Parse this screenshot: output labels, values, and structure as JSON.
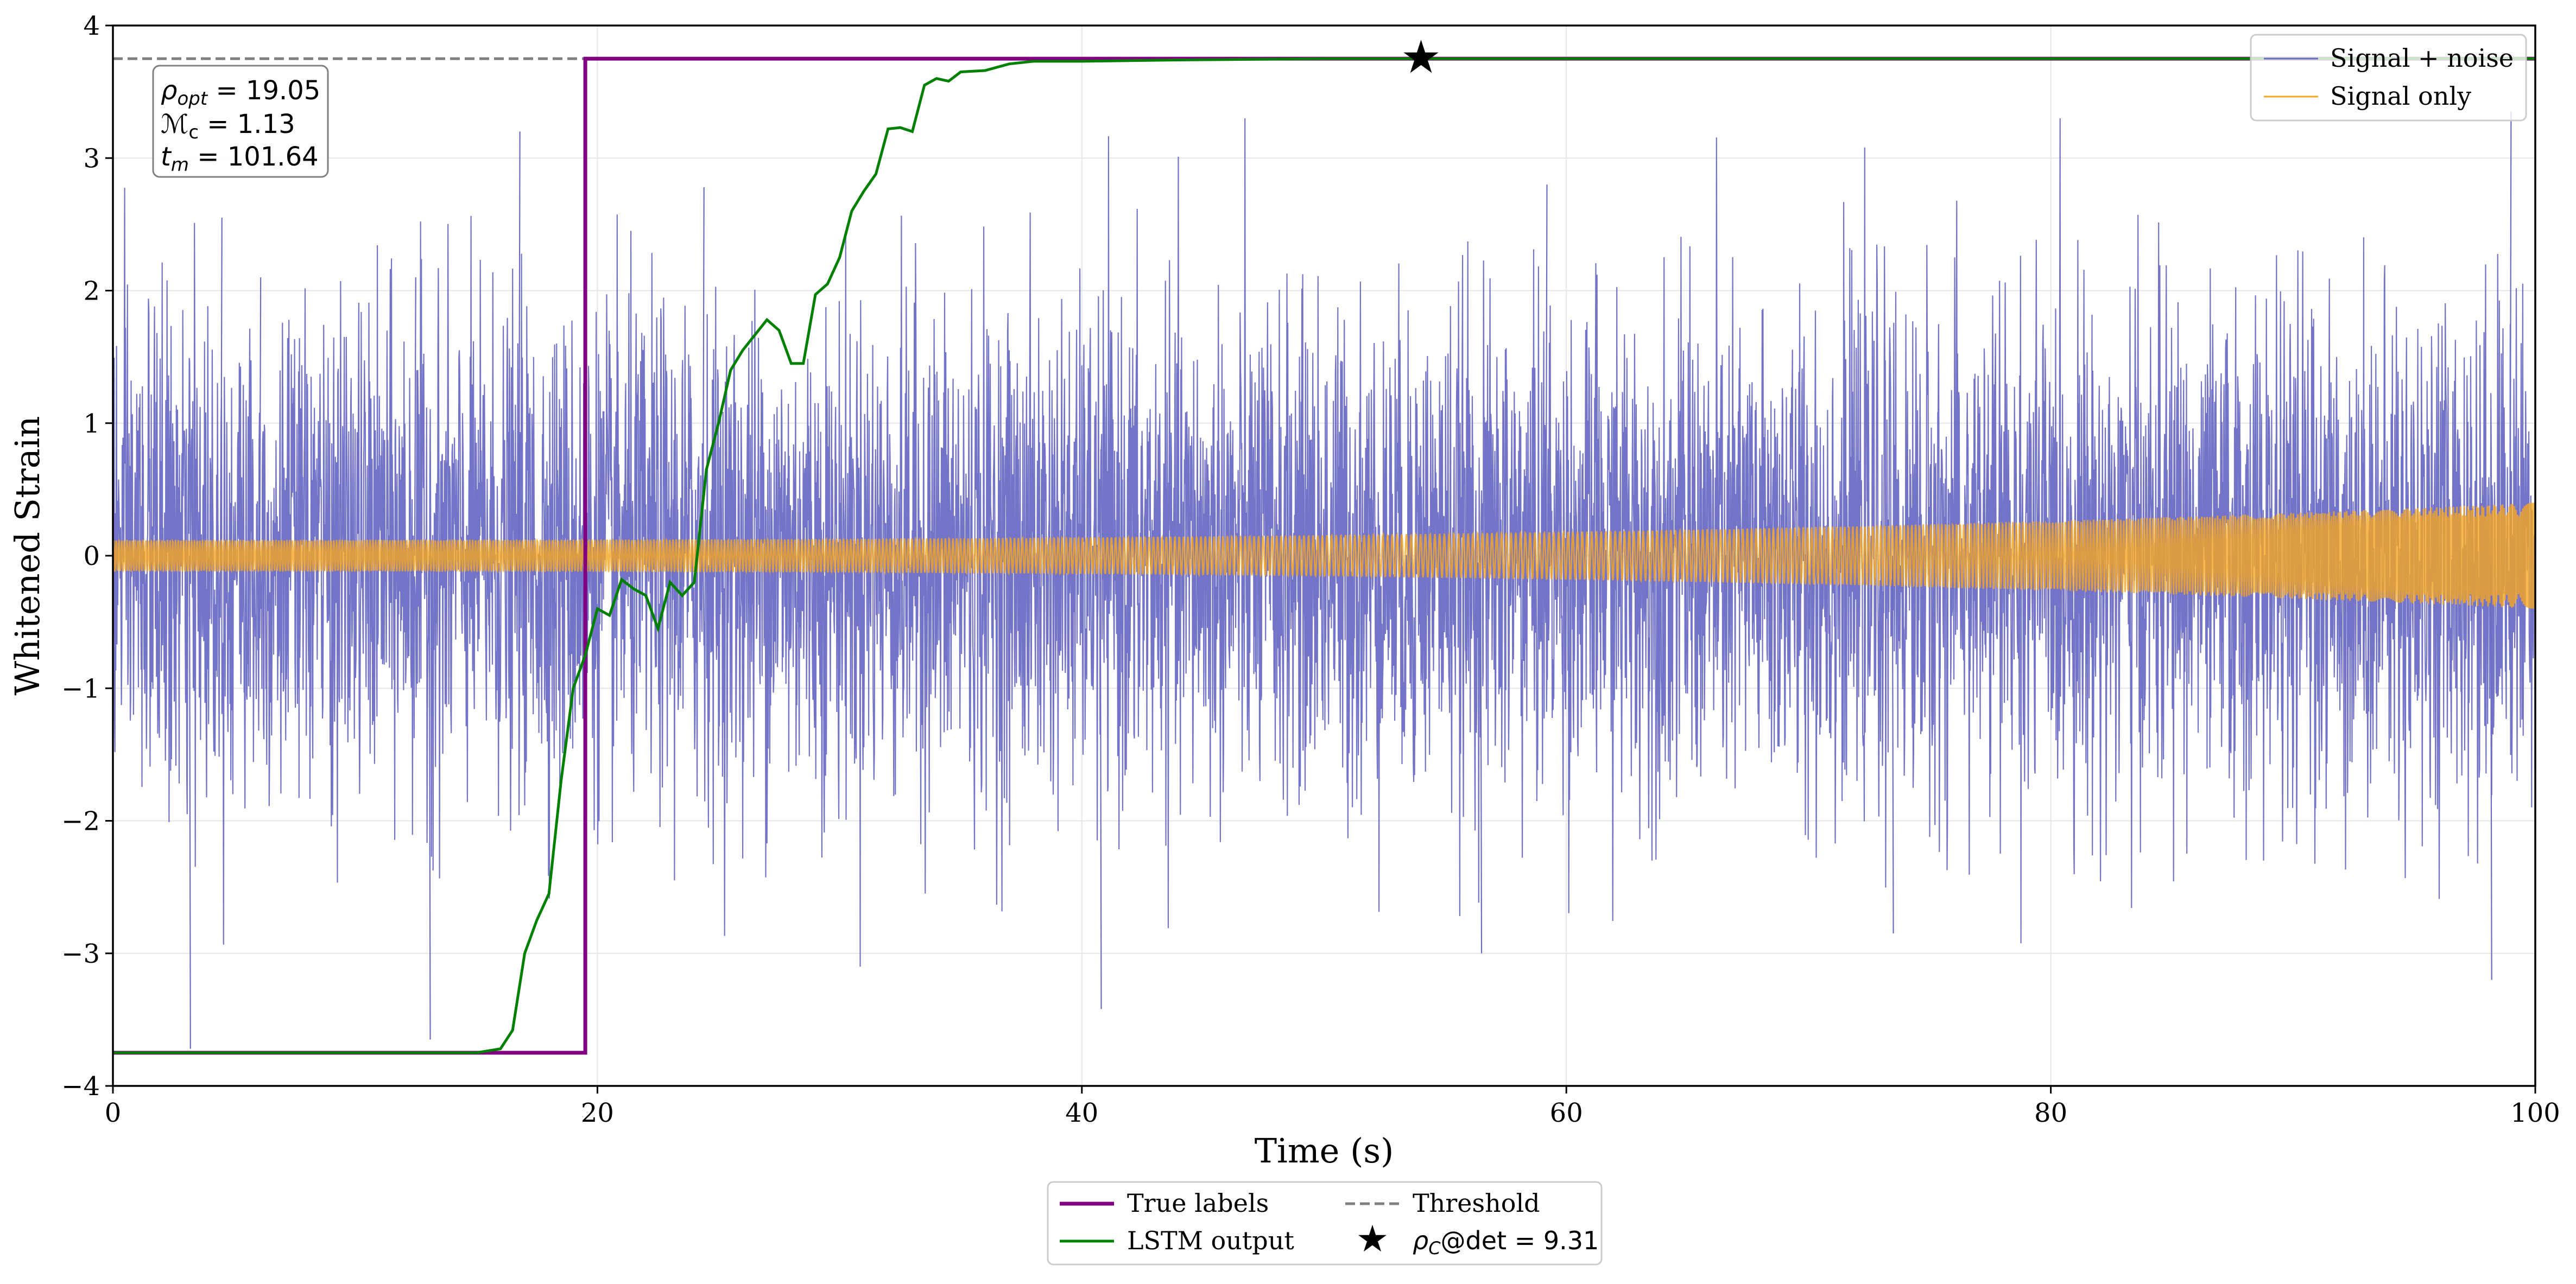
{
  "chart_data": {
    "type": "line",
    "xlabel": "Time (s)",
    "ylabel": "Whitened Strain",
    "xlim": [
      0,
      100
    ],
    "ylim": [
      -4,
      4
    ],
    "x_ticks": [
      0,
      20,
      40,
      60,
      80,
      100
    ],
    "x_tick_labels": [
      "0",
      "20",
      "40",
      "60",
      "80",
      "100"
    ],
    "y_ticks": [
      -4,
      -3,
      -2,
      -1,
      0,
      1,
      2,
      3,
      4
    ],
    "y_tick_labels": [
      "−4",
      "−3",
      "−2",
      "−1",
      "0",
      "1",
      "2",
      "3",
      "4"
    ],
    "grid": true,
    "threshold": 3.75,
    "annotation": {
      "rho_opt": "19.05",
      "chirp_mass": "1.13",
      "t_m": "101.64",
      "lines": [
        {
          "sym": "ρ",
          "sub": "opt",
          "eq": " = 19.05"
        },
        {
          "sym": "ℳ",
          "sub": "c",
          "eq": " = 1.13"
        },
        {
          "sym": "t",
          "sub": "m",
          "eq": " = 101.64"
        }
      ]
    },
    "detection": {
      "x": 54.0,
      "y": 3.75,
      "label_prefix": "ρ",
      "label_sub": "C",
      "label_suffix": "@det = 9.31"
    },
    "series": [
      {
        "name": "Signal + noise",
        "color": "#6b6bc4",
        "role": "noise",
        "description_values": {
          "approx_std": 0.9,
          "approx_min": -3.4,
          "approx_max": 3.6
        },
        "peaks": [
          {
            "x": 3.2,
            "y": -3.72
          },
          {
            "x": 4.5,
            "y": 2.55
          },
          {
            "x": 6.1,
            "y": 2.1
          },
          {
            "x": 12.5,
            "y": 2.1
          },
          {
            "x": 13.1,
            "y": -3.65
          },
          {
            "x": 16.8,
            "y": 3.2
          },
          {
            "x": 24.4,
            "y": 2.78
          },
          {
            "x": 40.8,
            "y": -3.42
          },
          {
            "x": 56.5,
            "y": -3.0
          },
          {
            "x": 59.2,
            "y": 2.8
          },
          {
            "x": 73.5,
            "y": -2.85
          },
          {
            "x": 99.0,
            "y": 3.35
          },
          {
            "x": 98.2,
            "y": -3.2
          }
        ]
      },
      {
        "name": "Signal only",
        "color": "#f5a623",
        "role": "chirp",
        "description_values": {
          "early_amplitude": 0.12,
          "late_amplitude": 0.4
        }
      },
      {
        "name": "True labels",
        "color": "#800080",
        "role": "step",
        "x": [
          0,
          19.5,
          19.5,
          100
        ],
        "y": [
          -3.75,
          -3.75,
          3.75,
          3.75
        ]
      },
      {
        "name": "LSTM output",
        "color": "#008000",
        "role": "curve",
        "x": [
          0,
          15,
          16,
          16.5,
          17,
          17.5,
          18,
          18.5,
          19,
          19.5,
          20,
          20.5,
          21,
          21.5,
          22,
          22.5,
          23,
          23.5,
          24,
          24.5,
          25,
          25.5,
          26,
          27,
          27.5,
          28,
          28.5,
          29,
          29.5,
          30,
          30.5,
          31,
          31.5,
          32,
          32.5,
          33,
          33.5,
          34,
          34.5,
          35,
          36,
          37,
          38,
          40,
          44,
          50,
          100
        ],
        "y": [
          -3.75,
          -3.75,
          -3.72,
          -3.58,
          -3.0,
          -2.75,
          -2.55,
          -1.7,
          -1.0,
          -0.75,
          -0.4,
          -0.45,
          -0.18,
          -0.25,
          -0.3,
          -0.55,
          -0.2,
          -0.3,
          -0.2,
          0.65,
          1.0,
          1.4,
          1.55,
          1.78,
          1.7,
          1.45,
          1.45,
          1.97,
          2.05,
          2.25,
          2.6,
          2.75,
          2.88,
          3.22,
          3.23,
          3.2,
          3.55,
          3.6,
          3.58,
          3.65,
          3.66,
          3.71,
          3.73,
          3.73,
          3.74,
          3.75,
          3.75
        ]
      }
    ],
    "legend_top_right": [
      "Signal + noise",
      "Signal only"
    ],
    "legend_bottom": [
      "True labels",
      "Threshold",
      "LSTM output"
    ]
  }
}
